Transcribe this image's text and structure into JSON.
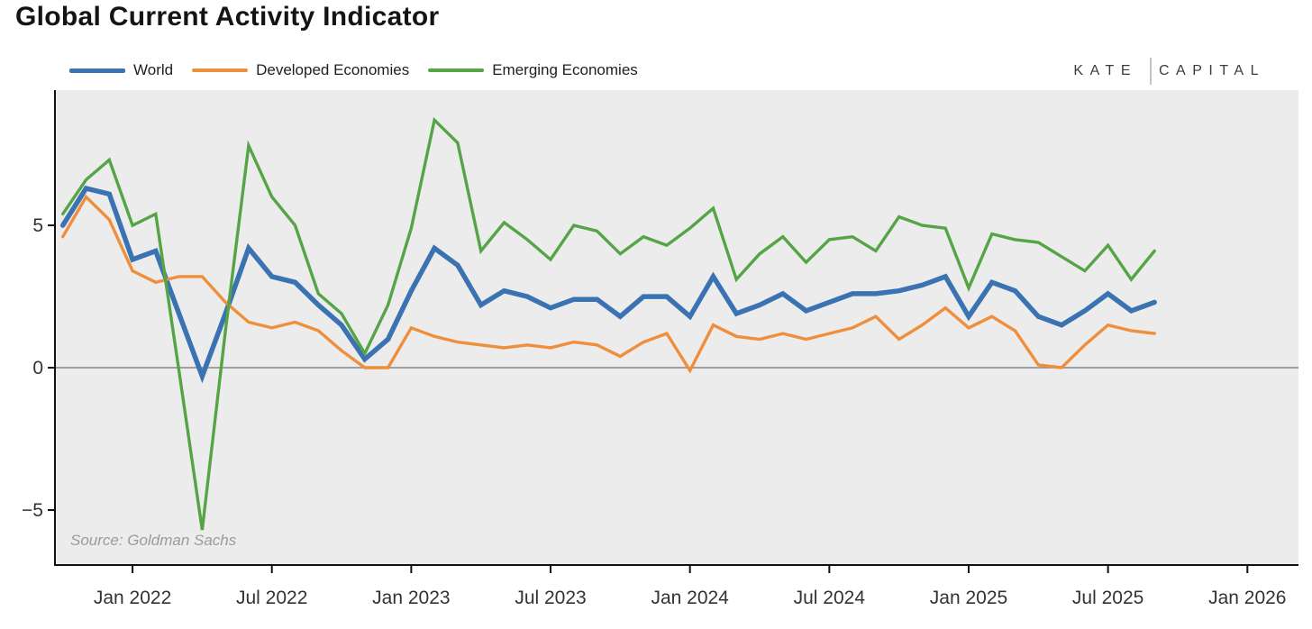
{
  "header": {
    "brand_left": "KATE",
    "brand_right": "CAPITAL"
  },
  "source_note": "Source: Goldman Sachs",
  "chart_data": {
    "type": "line",
    "title": "Global Current Activity Indicator",
    "xlabel": "",
    "ylabel": "",
    "plot_bg": "#ececec",
    "zero_line_color": "#858585",
    "axis_color": "#111111",
    "grid": false,
    "legend_position": "top-left",
    "source": "Source: Goldman Sachs",
    "ylim": [
      -6.93,
      9.75
    ],
    "y_ticks": [
      {
        "label": "5",
        "value": 5
      },
      {
        "label": "0",
        "value": 0
      },
      {
        "label": "−5",
        "value": -5
      }
    ],
    "x_ticks": [
      {
        "label": "Jan 2022",
        "month_index": 3
      },
      {
        "label": "Jul 2022",
        "month_index": 9
      },
      {
        "label": "Jan 2023",
        "month_index": 15
      },
      {
        "label": "Jul 2023",
        "month_index": 21
      },
      {
        "label": "Jan 2024",
        "month_index": 27
      },
      {
        "label": "Jul 2024",
        "month_index": 33
      },
      {
        "label": "Jan 2025",
        "month_index": 39
      },
      {
        "label": "Jul 2025",
        "month_index": 45
      },
      {
        "label": "Jan 2026",
        "month_index": 51
      }
    ],
    "x_labels": [
      "Oct 2021",
      "Nov 2021",
      "Dec 2021",
      "Jan 2022",
      "Feb 2022",
      "Mar 2022",
      "Apr 2022",
      "May 2022",
      "Jun 2022",
      "Jul 2022",
      "Aug 2022",
      "Sep 2022",
      "Oct 2022",
      "Nov 2022",
      "Dec 2022",
      "Jan 2023",
      "Feb 2023",
      "Mar 2023",
      "Apr 2023",
      "May 2023",
      "Jun 2023",
      "Jul 2023",
      "Aug 2023",
      "Sep 2023",
      "Oct 2023",
      "Nov 2023",
      "Dec 2023",
      "Jan 2024",
      "Feb 2024",
      "Mar 2024",
      "Apr 2024",
      "May 2024",
      "Jun 2024",
      "Jul 2024",
      "Aug 2024",
      "Sep 2024",
      "Oct 2024",
      "Nov 2024",
      "Dec 2024",
      "Jan 2025",
      "Feb 2025",
      "Mar 2025",
      "Apr 2025",
      "May 2025",
      "Jun 2025",
      "Jul 2025",
      "Aug 2025",
      "Sep 2025"
    ],
    "series": [
      {
        "name": "World",
        "color": "#3a72b2",
        "line_width": 5.5,
        "values": [
          5.0,
          6.3,
          6.1,
          3.8,
          4.1,
          1.9,
          -0.3,
          1.9,
          4.2,
          3.2,
          3.0,
          2.2,
          1.5,
          0.3,
          1.0,
          2.7,
          4.2,
          3.6,
          2.2,
          2.7,
          2.5,
          2.1,
          2.4,
          2.4,
          1.8,
          2.5,
          2.5,
          1.8,
          3.2,
          1.9,
          2.2,
          2.6,
          2.0,
          2.3,
          2.6,
          2.6,
          2.7,
          2.9,
          3.2,
          1.8,
          3.0,
          2.7,
          1.8,
          1.5,
          2.0,
          2.6,
          2.0,
          2.3
        ]
      },
      {
        "name": "Developed Economies",
        "color": "#ef8e3b",
        "line_width": 3.4,
        "values": [
          4.6,
          6.0,
          5.2,
          3.4,
          3.0,
          3.2,
          3.2,
          2.3,
          1.6,
          1.4,
          1.6,
          1.3,
          0.6,
          0.0,
          0.0,
          1.4,
          1.1,
          0.9,
          0.8,
          0.7,
          0.8,
          0.7,
          0.9,
          0.8,
          0.4,
          0.9,
          1.2,
          -0.1,
          1.5,
          1.1,
          1.0,
          1.2,
          1.0,
          1.2,
          1.4,
          1.8,
          1.0,
          1.5,
          2.1,
          1.4,
          1.8,
          1.3,
          0.1,
          0.0,
          0.8,
          1.5,
          1.3,
          1.2
        ]
      },
      {
        "name": "Emerging Economies",
        "color": "#55a546",
        "line_width": 3.4,
        "values": [
          5.4,
          6.6,
          7.3,
          5.0,
          5.4,
          -0.1,
          -5.7,
          1.3,
          7.8,
          6.0,
          5.0,
          2.6,
          1.9,
          0.5,
          2.2,
          4.9,
          8.7,
          7.9,
          4.1,
          5.1,
          4.5,
          3.8,
          5.0,
          4.8,
          4.0,
          4.6,
          4.3,
          4.9,
          5.6,
          3.1,
          4.0,
          4.6,
          3.7,
          4.5,
          4.6,
          4.1,
          5.3,
          5.0,
          4.9,
          2.8,
          4.7,
          4.5,
          4.4,
          3.9,
          3.4,
          4.3,
          3.1,
          4.1
        ]
      }
    ]
  }
}
